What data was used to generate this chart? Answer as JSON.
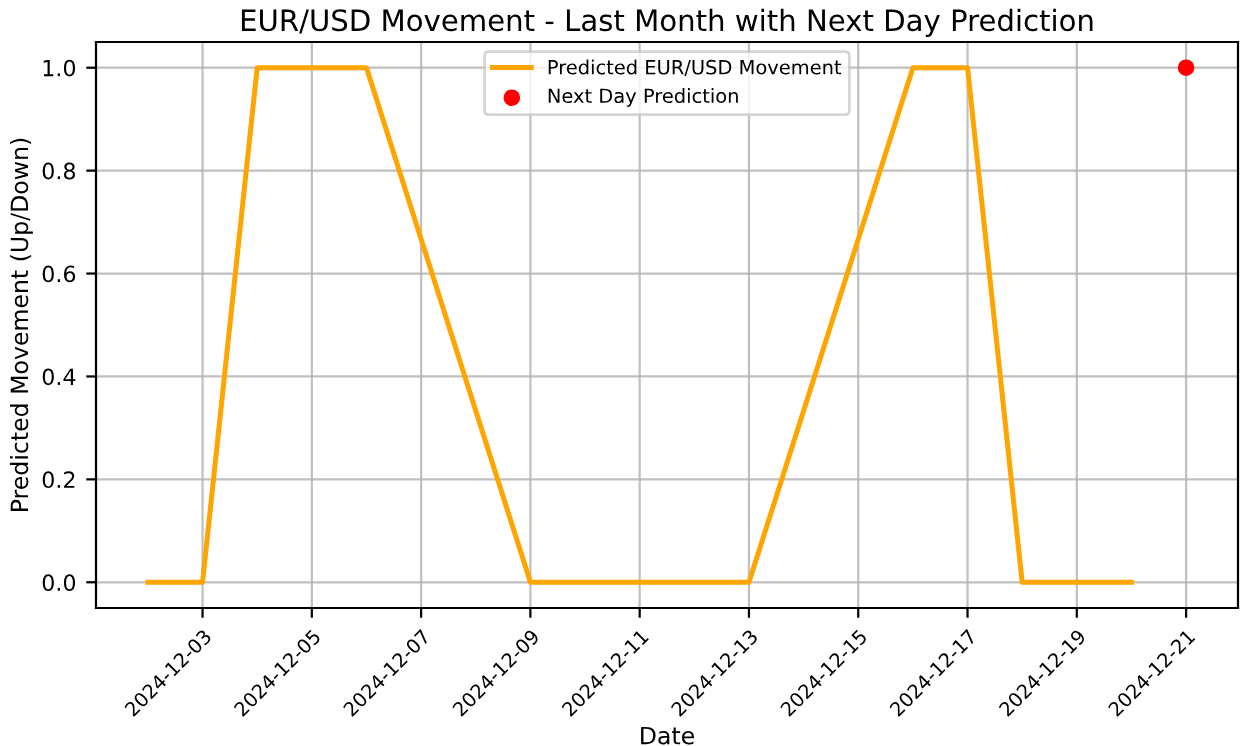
{
  "chart_data": {
    "type": "line",
    "title": "EUR/USD Movement - Last Month with Next Day Prediction",
    "xlabel": "Date",
    "ylabel": "Predicted Movement (Up/Down)",
    "series": [
      {
        "name": "Predicted EUR/USD Movement",
        "color": "#ffa500",
        "x": [
          "2024-12-02",
          "2024-12-03",
          "2024-12-04",
          "2024-12-05",
          "2024-12-06",
          "2024-12-09",
          "2024-12-10",
          "2024-12-11",
          "2024-12-12",
          "2024-12-13",
          "2024-12-16",
          "2024-12-17",
          "2024-12-18",
          "2024-12-19",
          "2024-12-20"
        ],
        "values": [
          0,
          0,
          1,
          1,
          1,
          0,
          0,
          0,
          0,
          0,
          1,
          1,
          0,
          0,
          0
        ]
      },
      {
        "name": "Next Day Prediction",
        "type": "scatter",
        "color": "#ff0000",
        "x": [
          "2024-12-21"
        ],
        "values": [
          1
        ]
      }
    ],
    "xlim": [
      "2024-12-01T01:12",
      "2024-12-21T22:48"
    ],
    "xticks": [
      "2024-12-03",
      "2024-12-05",
      "2024-12-07",
      "2024-12-09",
      "2024-12-11",
      "2024-12-13",
      "2024-12-15",
      "2024-12-17",
      "2024-12-19",
      "2024-12-21"
    ],
    "ylim": [
      -0.05,
      1.05
    ],
    "yticks": [
      {
        "value": 0,
        "label": "0.0"
      },
      {
        "value": 0.2,
        "label": "0.2"
      },
      {
        "value": 0.4,
        "label": "0.4"
      },
      {
        "value": 0.6,
        "label": "0.6"
      },
      {
        "value": 0.8,
        "label": "0.8"
      },
      {
        "value": 1,
        "label": "1.0"
      }
    ],
    "grid": true,
    "legend": "top center"
  }
}
